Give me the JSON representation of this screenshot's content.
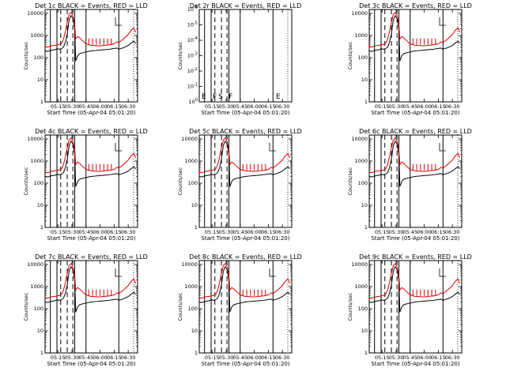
{
  "chart_data": {
    "type": "line",
    "series_names": [
      "Events",
      "LLD"
    ],
    "series_colors": {
      "Events": "#000000",
      "LLD": "#e00000"
    },
    "xlabel": "Start Time (05-Apr-04 05:01:20)",
    "ylabel": "Counts/sec",
    "x_domain": [
      "05:01:20",
      "06:40:00"
    ],
    "x_ticks": [
      "05:15",
      "05:30",
      "05:45",
      "06:00",
      "06:15",
      "06:30"
    ],
    "y_scale": "log",
    "y_ticks": [
      "1",
      "10",
      "100",
      "1000",
      "10000"
    ],
    "ylim": [
      1,
      15000
    ],
    "panels": [
      {
        "title": "Det 1c BLACK = Events, RED = LLD",
        "data_present": true
      },
      {
        "title": "Det 2r BLACK = Events, RED = LLD",
        "data_present": false,
        "y_ticks": [
          "10^0",
          "10^-1",
          "10^-2",
          "10^-3",
          "10^-4",
          "10^-5",
          "10^-6"
        ],
        "markers": [
          "E",
          "F",
          "S",
          "F",
          "E"
        ]
      },
      {
        "title": "Det 3c BLACK = Events, RED = LLD",
        "data_present": true
      },
      {
        "title": "Det 4c BLACK = Events, RED = LLD",
        "data_present": true
      },
      {
        "title": "Det 5c BLACK = Events, RED = LLD",
        "data_present": true
      },
      {
        "title": "Det 6c BLACK = Events, RED = LLD",
        "data_present": true
      },
      {
        "title": "Det 7c BLACK = Events, RED = LLD",
        "data_present": true
      },
      {
        "title": "Det 8c BLACK = Events, RED = LLD",
        "data_present": true
      },
      {
        "title": "Det 9c BLACK = Events, RED = LLD",
        "data_present": true
      }
    ],
    "solid_markers": [
      "05:07",
      "05:14",
      "05:33",
      "05:45",
      "06:20"
    ],
    "dashed_markers": [
      "05:18",
      "05:25",
      "05:31"
    ],
    "events_series": {
      "x": [
        "05:01",
        "05:04",
        "05:07",
        "05:09",
        "05:12",
        "05:14",
        "05:17",
        "05:19",
        "05:21",
        "05:23",
        "05:25",
        "05:27",
        "05:29",
        "05:31",
        "05:33",
        "05:34",
        "05:36",
        "05:38",
        "05:40",
        "05:45",
        "05:50",
        "05:55",
        "06:00",
        "06:05",
        "06:10",
        "06:15",
        "06:18",
        "06:20",
        "06:25",
        "06:30",
        "06:33",
        "06:36",
        "06:38"
      ],
      "y": [
        200,
        190,
        210,
        220,
        230,
        250,
        240,
        260,
        300,
        500,
        1200,
        5000,
        8000,
        6000,
        2000,
        70,
        120,
        150,
        160,
        180,
        200,
        210,
        220,
        230,
        240,
        260,
        270,
        240,
        280,
        350,
        450,
        550,
        450
      ]
    },
    "lld_series": {
      "x": [
        "05:01",
        "05:04",
        "05:07",
        "05:09",
        "05:12",
        "05:14",
        "05:17",
        "05:19",
        "05:21",
        "05:23",
        "05:25",
        "05:27",
        "05:29",
        "05:31",
        "05:33",
        "05:34",
        "05:36",
        "05:38",
        "05:40",
        "05:45",
        "05:50",
        "05:55",
        "06:00",
        "06:05",
        "06:10",
        "06:15",
        "06:18",
        "06:20",
        "06:25",
        "06:30",
        "06:33",
        "06:36",
        "06:38"
      ],
      "y": [
        320,
        300,
        330,
        350,
        360,
        380,
        400,
        450,
        700,
        1500,
        4000,
        9000,
        11000,
        8000,
        3000,
        700,
        900,
        800,
        650,
        420,
        360,
        350,
        340,
        360,
        380,
        420,
        520,
        480,
        700,
        1100,
        1700,
        2200,
        1400
      ]
    }
  }
}
